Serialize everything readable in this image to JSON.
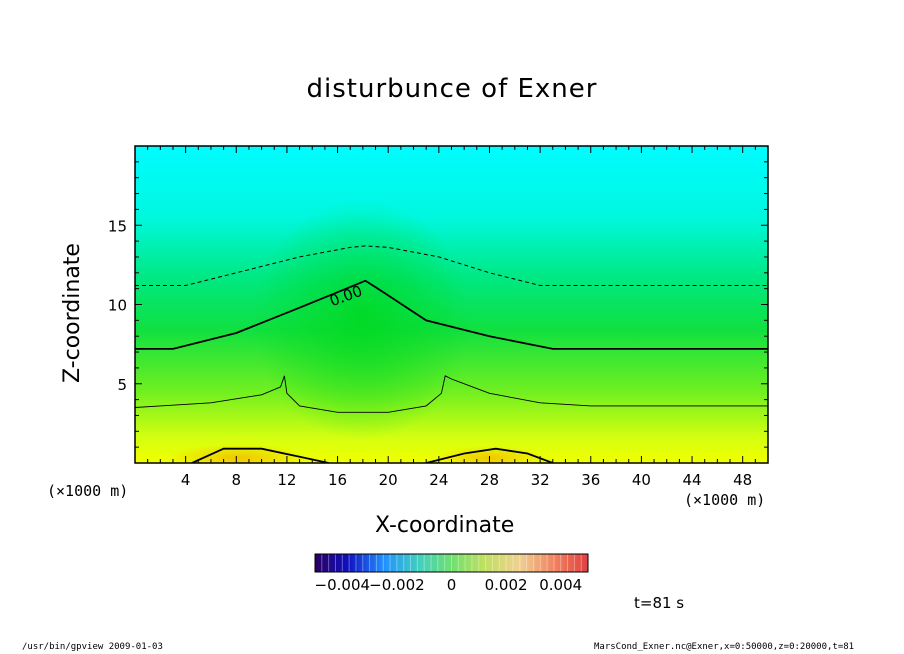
{
  "chart_data": {
    "type": "heatmap",
    "title": "disturbunce of Exner",
    "xlabel": "X-coordinate",
    "ylabel": "Z-coordinate",
    "x_unit_left": "(×1000 m)",
    "x_unit_right": "(×1000 m)",
    "xlim": [
      0,
      50
    ],
    "ylim": [
      0,
      20
    ],
    "xticks": [
      4,
      8,
      12,
      16,
      20,
      24,
      28,
      32,
      36,
      40,
      44,
      48
    ],
    "yticks": [
      5,
      10,
      15
    ],
    "contours": [
      {
        "level": "0.00",
        "style": "solid-thick",
        "labeled": true,
        "x": [
          0,
          3,
          8,
          13,
          17,
          18.2,
          19,
          23,
          28,
          33,
          50
        ],
        "y": [
          7.2,
          7.2,
          8.2,
          9.8,
          11.1,
          11.5,
          11.1,
          9.0,
          8.0,
          7.2,
          7.2
        ]
      },
      {
        "level": "positive",
        "style": "dashed",
        "x": [
          0,
          4,
          8,
          13,
          17,
          18.2,
          20,
          24,
          28,
          32,
          50
        ],
        "y": [
          11.2,
          11.2,
          12.0,
          13.0,
          13.6,
          13.7,
          13.6,
          13.0,
          12.0,
          11.2,
          11.2
        ]
      },
      {
        "level": "negative",
        "style": "solid-thin",
        "x": [
          0,
          2,
          6,
          10,
          11.5,
          11.8,
          12,
          13,
          16,
          20,
          23,
          24.2,
          24.5,
          25,
          28,
          32,
          36,
          40,
          44,
          48,
          50
        ],
        "y": [
          3.5,
          3.6,
          3.8,
          4.3,
          4.8,
          5.5,
          4.4,
          3.6,
          3.2,
          3.2,
          3.6,
          4.4,
          5.5,
          5.3,
          4.4,
          3.8,
          3.6,
          3.6,
          3.6,
          3.6,
          3.6
        ]
      },
      {
        "level": "negative-bump-left",
        "style": "solid-thick",
        "x": [
          4.5,
          7,
          10,
          13,
          15.3
        ],
        "y": [
          0,
          0.9,
          0.9,
          0.4,
          0
        ]
      },
      {
        "level": "negative-bump-right",
        "style": "solid-thick",
        "x": [
          23,
          26,
          28.5,
          31,
          33
        ],
        "y": [
          0,
          0.6,
          0.9,
          0.6,
          0
        ]
      }
    ],
    "colorbar": {
      "range": [
        -0.005,
        0.005
      ],
      "tick_labels": [
        "−0.004",
        "−0.002",
        "0",
        "0.002",
        "0.004"
      ],
      "tick_values": [
        -0.004,
        -0.002,
        0,
        0.002,
        0.004
      ]
    },
    "colors": {
      "cyan": "#00f0ff",
      "green": "#00e020",
      "yellow": "#f0ff00",
      "orange": "#f0c000"
    },
    "time_label": "t=81 s"
  },
  "footer": {
    "left": "/usr/bin/gpview   2009-01-03",
    "right": "MarsCond_Exner.nc@Exner,x=0:50000,z=0:20000,t=81"
  }
}
